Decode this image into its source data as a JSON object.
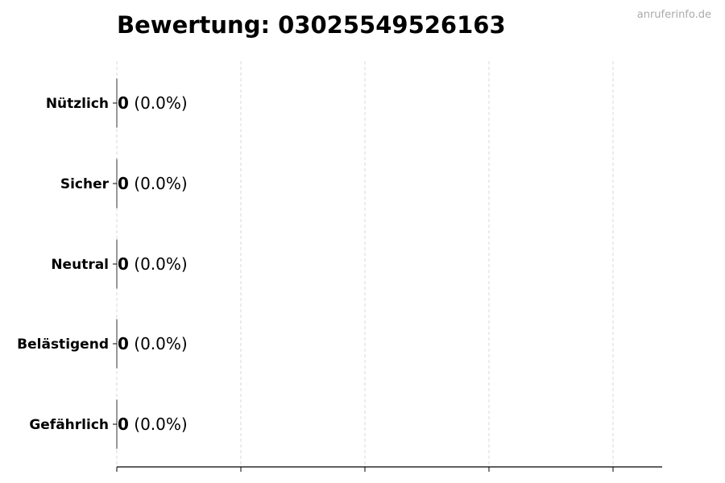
{
  "watermark": "anruferinfo.de",
  "chart_data": {
    "type": "bar",
    "orientation": "horizontal",
    "title": "Bewertung: 03025549526163",
    "categories": [
      "Nützlich",
      "Sicher",
      "Neutral",
      "Belästigend",
      "Gefährlich"
    ],
    "values": [
      0,
      0,
      0,
      0,
      0
    ],
    "data_labels": [
      {
        "count": "0",
        "percent": "(0.0%)"
      },
      {
        "count": "0",
        "percent": "(0.0%)"
      },
      {
        "count": "0",
        "percent": "(0.0%)"
      },
      {
        "count": "0",
        "percent": "(0.0%)"
      },
      {
        "count": "0",
        "percent": "(0.0%)"
      }
    ],
    "xlabel": "",
    "ylabel": "",
    "x_tick_labels_shown": false,
    "grid": "vertical dashed",
    "colors": {
      "grid": "#d9d9d9",
      "axis": "#000000",
      "watermark": "#aaaaaa",
      "bar_edge": "#333333"
    }
  }
}
